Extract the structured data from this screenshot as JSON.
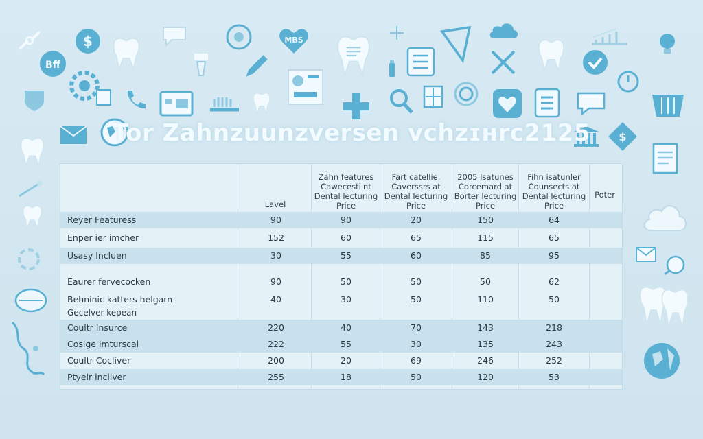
{
  "title": "Tor Zahnzuunzversen vchzɪʜrc2125",
  "colors": {
    "background": "#d8eaf3",
    "table_bg": "#e4f2f8",
    "row_alt": "#c9e1ed",
    "icon": "#5ab0d3",
    "title": "#f2fbff"
  },
  "table": {
    "headers": [
      "Lavel",
      "Zähn features\nCawecestiınt\nDental lecturing\nPrice",
      "Fart catellie,\nCaverssrs at\nDental lecturing\nPrice",
      "2005 Isatunes\nCorcemard at\nBorter lecturing\nPrice",
      "Fihn isatunler\nCounsects at\nDental lecturing\nPrice",
      "Poter"
    ],
    "rows": [
      {
        "label": "Reyer Featuress",
        "values": [
          "90",
          "90",
          "20",
          "150",
          "64"
        ]
      },
      {
        "label": "Enper ier imcher",
        "values": [
          "152",
          "60",
          "65",
          "115",
          "65"
        ]
      },
      {
        "label": "Usasy Incluen",
        "values": [
          "30",
          "55",
          "60",
          "85",
          "95"
        ]
      },
      {
        "label": "Eaurer fervecocken",
        "values": [
          "90",
          "50",
          "50",
          "50",
          "62"
        ]
      },
      {
        "label": "Behninic katters helgarn",
        "values": [
          "40",
          "30",
          "50",
          "110",
          "50"
        ]
      },
      {
        "label": "Coultr Insurce",
        "values": [
          "220",
          "40",
          "70",
          "143",
          "218"
        ]
      },
      {
        "label": "Cosige imturscal",
        "values": [
          "222",
          "55",
          "30",
          "135",
          "243"
        ]
      },
      {
        "label": "Coultr Cocliver",
        "values": [
          "200",
          "20",
          "69",
          "246",
          "252"
        ]
      },
      {
        "label": "Ptyeir incliver",
        "values": [
          "255",
          "18",
          "50",
          "120",
          "53"
        ]
      }
    ],
    "subnote": "Gecelver kepean"
  },
  "icons": [
    "link-icon",
    "dollar-coin-icon",
    "chat-bubble-icon",
    "flower-badge-icon",
    "heart-badge-icon",
    "tooth-icon",
    "toothbrush-icon",
    "cloud-icon",
    "growth-chart-icon",
    "lightbulb-icon",
    "bff-badge-icon",
    "tooth-icon",
    "implant-icon",
    "pencil-icon",
    "tooth-document-icon",
    "bottle-icon",
    "checklist-icon",
    "triangle-ruler-icon",
    "tools-icon",
    "check-circle-icon",
    "shield-icon",
    "gear-icon",
    "phone-icon",
    "calendar-icon",
    "brush-icon",
    "document-icon",
    "medical-cross-icon",
    "magnifier-icon",
    "calculator-icon",
    "power-icon",
    "heart-frame-icon",
    "list-icon",
    "message-icon",
    "basket-icon",
    "envelope-icon",
    "globe-icon",
    "bank-icon",
    "diamond-dollar-icon",
    "report-icon",
    "molar-icon",
    "thermometer-icon",
    "cloud-outline-icon",
    "mail-icon",
    "hand-icon",
    "mouth-icon",
    "tooth-pair-icon",
    "wave-line-icon",
    "globe-icon"
  ]
}
